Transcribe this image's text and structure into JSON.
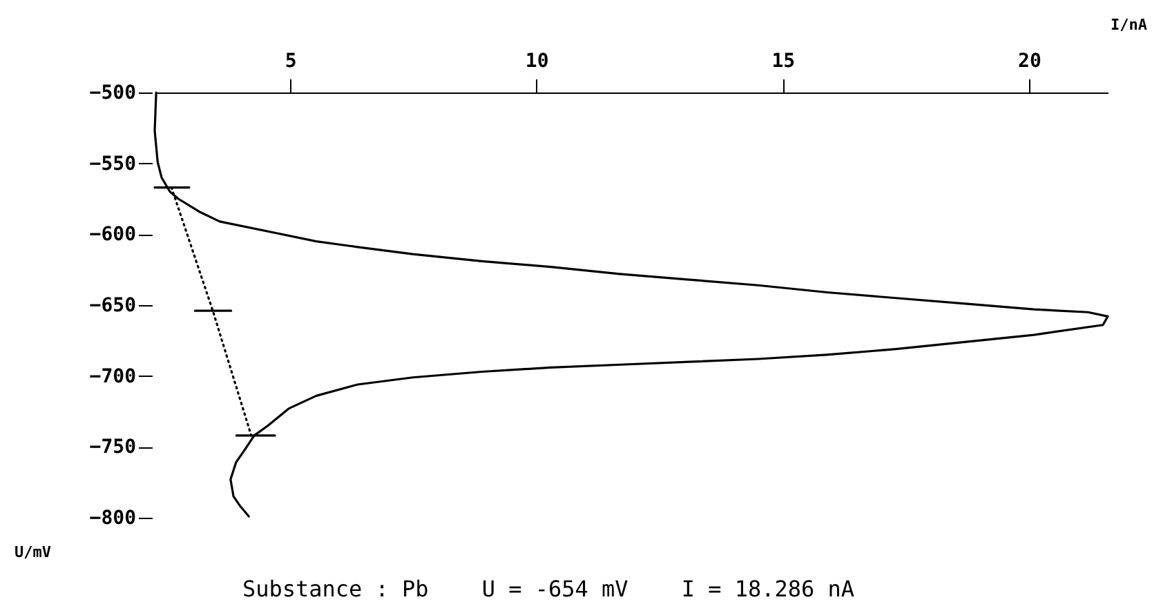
{
  "chart_data": {
    "type": "line",
    "xlabel": "I/nA",
    "ylabel": "U/mV",
    "annotations": [
      "Substance : Pb    U = -654 mV    I = 18.286 nA"
    ],
    "xlim": [
      2.25,
      21.6
    ],
    "xticks": [
      5,
      10,
      15,
      20
    ],
    "ylim": [
      -800,
      -500
    ],
    "yticks": [
      -500,
      -550,
      -600,
      -650,
      -700,
      -750,
      -800
    ],
    "grid": false,
    "marker": "none",
    "series": [
      {
        "color": "#000000",
        "line_style": "solid",
        "x": [
          2.28,
          2.25,
          2.31,
          2.39,
          2.56,
          2.73,
          3.15,
          3.57,
          4.69,
          5.53,
          6.37,
          7.49,
          8.89,
          10.29,
          11.69,
          13.1,
          14.5,
          15.9,
          17.3,
          18.7,
          20.1,
          21.2,
          21.6,
          21.5,
          20.1,
          18.7,
          17.3,
          15.9,
          14.5,
          13.1,
          11.7,
          10.29,
          8.89,
          7.49,
          6.37,
          5.53,
          4.97,
          4.55,
          4.27,
          4.08,
          3.9,
          3.79,
          3.85,
          3.99,
          4.16
        ],
        "values": [
          -500,
          -527,
          -549,
          -560,
          -570,
          -575,
          -584,
          -591,
          -599,
          -605,
          -609,
          -614,
          -619,
          -623,
          -628,
          -632,
          -636,
          -641,
          -645,
          -649,
          -653,
          -655,
          -658,
          -664,
          -671,
          -676,
          -681,
          -685,
          -688,
          -690,
          -692,
          -694,
          -697,
          -701,
          -706,
          -714,
          -723,
          -735,
          -742,
          -752,
          -761,
          -773,
          -785,
          -792,
          -799
        ]
      },
      {
        "color": "#000000",
        "line_style": "dotted",
        "x": [
          2.59,
          3.43,
          4.21
        ],
        "values": [
          -567,
          -654,
          -742
        ]
      },
      {
        "color": "#000000",
        "line_style": "solid",
        "x": [
          2.25,
          2.95
        ],
        "values": [
          -567,
          -567
        ]
      },
      {
        "color": "#000000",
        "line_style": "solid",
        "x": [
          3.07,
          3.8
        ],
        "values": [
          -654,
          -654
        ]
      },
      {
        "color": "#000000",
        "line_style": "solid",
        "x": [
          3.91,
          4.69
        ],
        "values": [
          -742,
          -742
        ]
      }
    ]
  }
}
